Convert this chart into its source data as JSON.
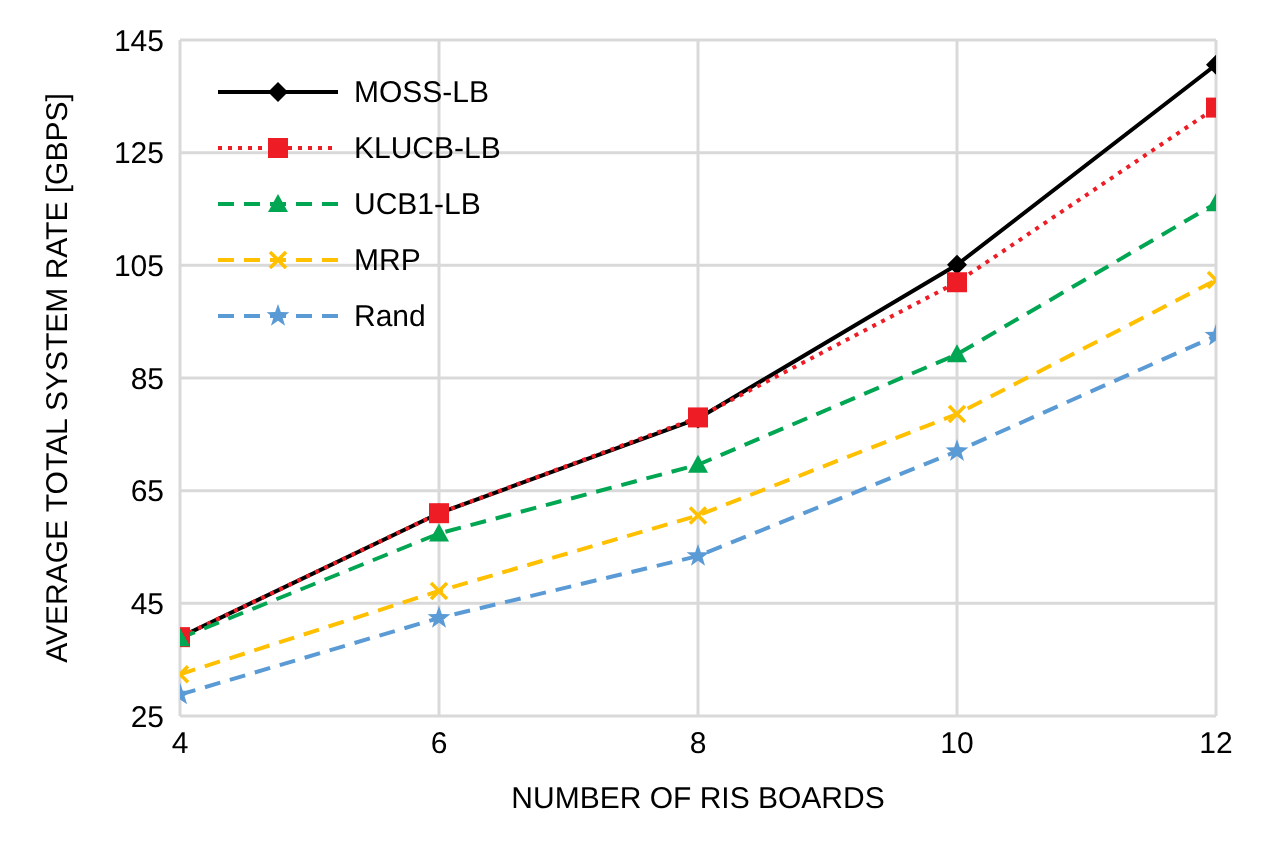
{
  "chart_data": {
    "type": "line",
    "xlabel": "NUMBER OF RIS BOARDS",
    "ylabel": "AVERAGE TOTAL SYSTEM RATE [GBPS]",
    "x": [
      4,
      6,
      8,
      10,
      12
    ],
    "xlim": [
      4,
      12
    ],
    "xticks": [
      4,
      6,
      8,
      10,
      12
    ],
    "ylim": [
      25,
      145
    ],
    "yticks": [
      25,
      45,
      65,
      85,
      105,
      125,
      145
    ],
    "grid": true,
    "legend": "top left",
    "series": [
      {
        "name": "MOSS-LB",
        "color": "#000000",
        "marker": "diamond",
        "line_style": "solid",
        "values": [
          39,
          61,
          77.8,
          105.1,
          140.6
        ]
      },
      {
        "name": "KLUCB-LB",
        "color": "#ee1c25",
        "marker": "square",
        "line_style": "dotted",
        "values": [
          39,
          61,
          78,
          102,
          133
        ]
      },
      {
        "name": "UCB1-LB",
        "color": "#00a651",
        "marker": "triangle",
        "line_style": "dashed",
        "values": [
          38.8,
          57.4,
          69.6,
          89.2,
          116
        ]
      },
      {
        "name": "MRP",
        "color": "#ffc000",
        "marker": "cross",
        "line_style": "dashed",
        "values": [
          32.4,
          47.2,
          60.6,
          78.6,
          102.4
        ]
      },
      {
        "name": "Rand",
        "color": "#5b9bd5",
        "marker": "star",
        "line_style": "dashed",
        "values": [
          28.8,
          42.4,
          53.4,
          72,
          92.5
        ]
      }
    ]
  }
}
